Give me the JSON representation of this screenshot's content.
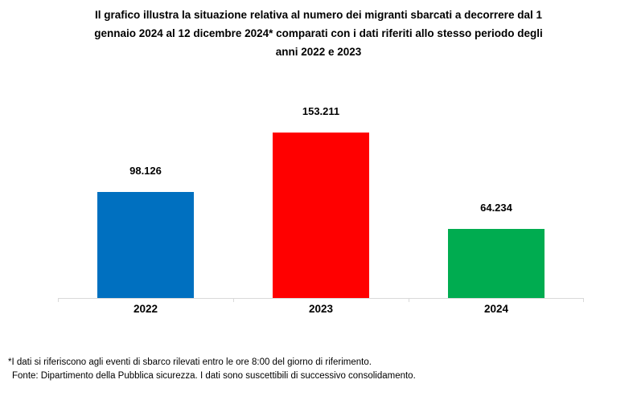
{
  "header": {
    "title_lines": [
      "Il grafico illustra la situazione relativa al numero dei migranti sbarcati a decorrere dal 1",
      "gennaio 2024 al 12 dicembre 2024* comparati con i dati riferiti allo stesso periodo degli",
      "anni 2022 e 2023"
    ]
  },
  "chart_data": {
    "type": "bar",
    "title": "Il grafico illustra la situazione relativa al numero dei migranti sbarcati a decorrere dal 1 gennaio 2024 al 12 dicembre 2024* comparati con i dati riferiti allo stesso periodo degli anni 2022 e 2023",
    "categories": [
      "2022",
      "2023",
      "2024"
    ],
    "values": [
      98126,
      153211,
      64234
    ],
    "value_labels": [
      "98.126",
      "153.211",
      "64.234"
    ],
    "bar_colors": [
      "#0070C0",
      "#FF0000",
      "#00AC50"
    ],
    "xlabel": "",
    "ylabel": "",
    "ylim": [
      0,
      153211
    ],
    "grid": false,
    "legend": false,
    "axis_line_color": "#D9D9D9"
  },
  "footnote": {
    "asterisk_note": "*I dati si riferiscono agli eventi di sbarco rilevati entro le ore 8:00 del giorno di riferimento.",
    "source_note": "Fonte: Dipartimento della Pubblica sicurezza. I dati sono suscettibili di successivo consolidamento."
  }
}
